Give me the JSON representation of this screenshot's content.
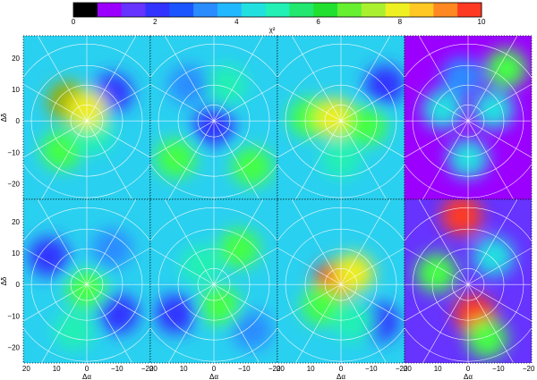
{
  "colorbar": {
    "colors": [
      "#000000",
      "#9b00ff",
      "#6633ff",
      "#3333ff",
      "#1a55ff",
      "#2a8cff",
      "#22b8ff",
      "#22e0e0",
      "#22f0b4",
      "#22e870",
      "#22e030",
      "#66f030",
      "#aaf030",
      "#eef022",
      "#ffc822",
      "#ff8822",
      "#ff3a22"
    ],
    "ticks": [
      "0",
      "2",
      "4",
      "6",
      "8",
      "10"
    ],
    "label": "χ²"
  },
  "axes": {
    "xlabel": "Δα",
    "ylabel": "Δδ",
    "y_ticks": [
      "20",
      "10",
      "0",
      "−10",
      "−20"
    ],
    "x_ticks": [
      "20",
      "10",
      "0",
      "−10",
      "−20"
    ]
  },
  "panels": [
    {
      "row": 0,
      "col": 0,
      "base": "#2ad0f0",
      "blobs": [
        [
          "#9a0",
          0.35,
          0.4
        ],
        [
          "#4f4",
          0.3,
          0.7
        ],
        [
          "#33f",
          0.7,
          0.35
        ],
        [
          "#22f0b4",
          0.55,
          0.6
        ],
        [
          "#ee2",
          0.5,
          0.45
        ]
      ]
    },
    {
      "row": 0,
      "col": 1,
      "base": "#2ad0f0",
      "blobs": [
        [
          "#4f4",
          0.2,
          0.75
        ],
        [
          "#33f",
          0.5,
          0.55
        ],
        [
          "#4f4",
          0.8,
          0.8
        ],
        [
          "#22f0b4",
          0.6,
          0.3
        ],
        [
          "#2a8cff",
          0.3,
          0.3
        ]
      ]
    },
    {
      "row": 0,
      "col": 2,
      "base": "#2ad0f0",
      "blobs": [
        [
          "#4f4",
          0.25,
          0.5
        ],
        [
          "#ee2",
          0.45,
          0.5
        ],
        [
          "#4f4",
          0.7,
          0.55
        ],
        [
          "#33f",
          0.85,
          0.3
        ],
        [
          "#22f0b4",
          0.5,
          0.75
        ]
      ]
    },
    {
      "row": 0,
      "col": 3,
      "base": "#9b00ff",
      "blobs": [
        [
          "#22e0e0",
          0.3,
          0.45
        ],
        [
          "#22e0e0",
          0.7,
          0.45
        ],
        [
          "#4f4",
          0.8,
          0.2
        ],
        [
          "#22e0e0",
          0.5,
          0.75
        ],
        [
          "#2a8cff",
          0.45,
          0.25
        ]
      ]
    },
    {
      "row": 1,
      "col": 0,
      "base": "#2ad0f0",
      "blobs": [
        [
          "#33f",
          0.2,
          0.35
        ],
        [
          "#4f4",
          0.5,
          0.55
        ],
        [
          "#33f",
          0.75,
          0.7
        ],
        [
          "#22f0b4",
          0.4,
          0.8
        ],
        [
          "#2a8cff",
          0.7,
          0.3
        ]
      ]
    },
    {
      "row": 1,
      "col": 1,
      "base": "#2ad0f0",
      "blobs": [
        [
          "#4f4",
          0.7,
          0.3
        ],
        [
          "#4f4",
          0.55,
          0.65
        ],
        [
          "#33f",
          0.2,
          0.7
        ],
        [
          "#22f0b4",
          0.4,
          0.4
        ],
        [
          "#2a8cff",
          0.8,
          0.8
        ]
      ]
    },
    {
      "row": 1,
      "col": 2,
      "base": "#2ad0f0",
      "blobs": [
        [
          "#ff3a22",
          0.45,
          0.5
        ],
        [
          "#ee2",
          0.6,
          0.45
        ],
        [
          "#4f4",
          0.35,
          0.65
        ],
        [
          "#33f",
          0.8,
          0.75
        ],
        [
          "#22f0b4",
          0.6,
          0.75
        ]
      ]
    },
    {
      "row": 1,
      "col": 3,
      "base": "#6633ff",
      "blobs": [
        [
          "#ff3a22",
          0.45,
          0.1
        ],
        [
          "#ff3a22",
          0.55,
          0.7
        ],
        [
          "#4f4",
          0.25,
          0.45
        ],
        [
          "#22e0e0",
          0.7,
          0.35
        ],
        [
          "#4f4",
          0.65,
          0.85
        ]
      ]
    }
  ]
}
